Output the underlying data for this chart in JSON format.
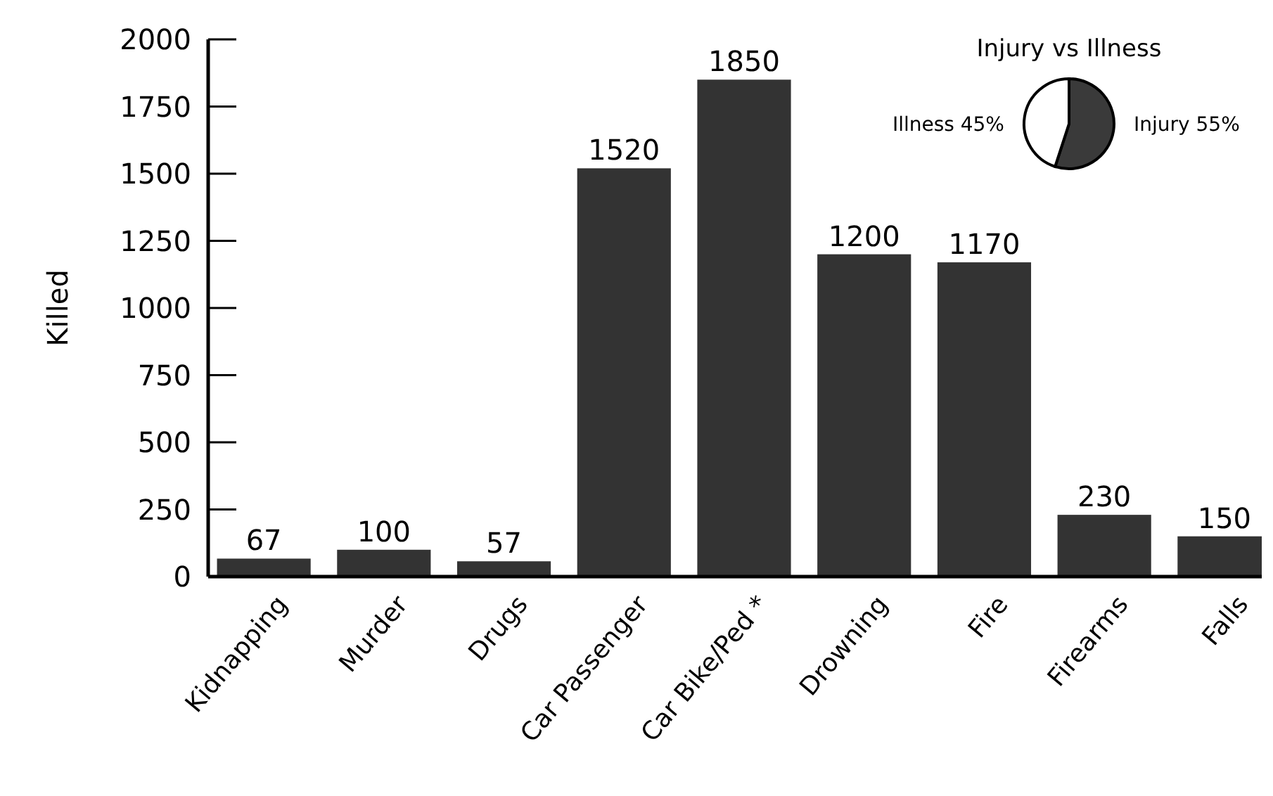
{
  "chart_data": [
    {
      "type": "bar",
      "ylabel": "Killed",
      "categories": [
        "Kidnapping",
        "Murder",
        "Drugs",
        "Car Passenger",
        "Car Bike/Ped *",
        "Drowning",
        "Fire",
        "Firearms",
        "Falls"
      ],
      "values": [
        67,
        100,
        57,
        1520,
        1850,
        1200,
        1170,
        230,
        150
      ],
      "color": "#333333",
      "ylim": [
        0,
        2000
      ],
      "yticks": [
        0,
        250,
        500,
        750,
        1000,
        1250,
        1500,
        1750,
        2000
      ],
      "data_labels": true
    },
    {
      "type": "pie",
      "title": "Injury vs Illness",
      "categories": [
        "Injury",
        "Illness"
      ],
      "values": [
        55,
        45
      ],
      "colors": [
        "#3a3a3a",
        "#ffffff"
      ],
      "value_labels": [
        "55%",
        "45%"
      ]
    }
  ]
}
